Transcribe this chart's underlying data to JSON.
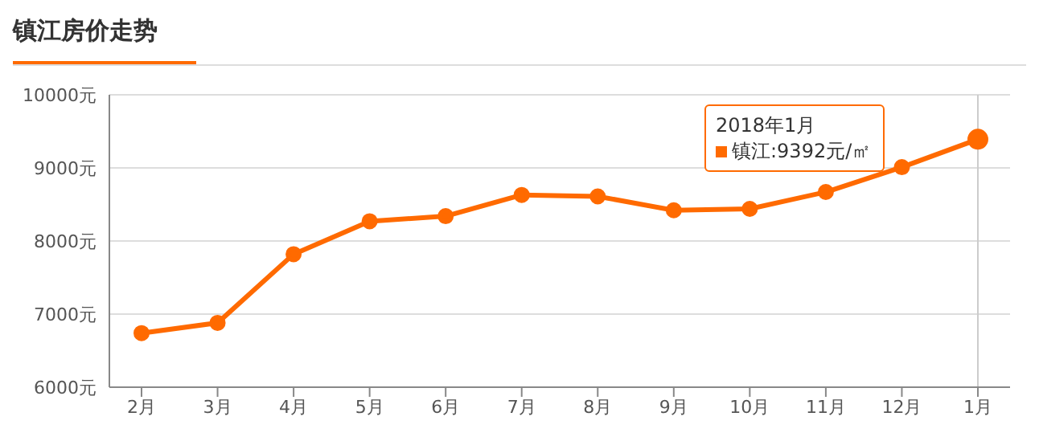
{
  "chart_data": {
    "type": "line",
    "title": "镇江房价走势",
    "categories": [
      "2月",
      "3月",
      "4月",
      "5月",
      "6月",
      "7月",
      "8月",
      "9月",
      "10月",
      "11月",
      "12月",
      "1月"
    ],
    "series": [
      {
        "name": "镇江",
        "color": "#ff6a00",
        "values": [
          6740,
          6880,
          7820,
          8270,
          8340,
          8630,
          8610,
          8420,
          8440,
          8670,
          9010,
          9392
        ]
      }
    ],
    "ylim": [
      6000,
      10000
    ],
    "yticks": [
      {
        "value": 6000,
        "label": "6000元"
      },
      {
        "value": 7000,
        "label": "7000元"
      },
      {
        "value": 8000,
        "label": "8000元"
      },
      {
        "value": 9000,
        "label": "9000元"
      },
      {
        "value": 10000,
        "label": "10000元"
      }
    ],
    "grid": "y",
    "marker": "circle",
    "line_style": "solid",
    "legend": "top right",
    "ref_lines": [
      {
        "axis": "x",
        "value": "1月",
        "color": "#cccccc"
      }
    ],
    "annotations": [
      "2018年1月",
      ":9392元/㎡"
    ]
  }
}
